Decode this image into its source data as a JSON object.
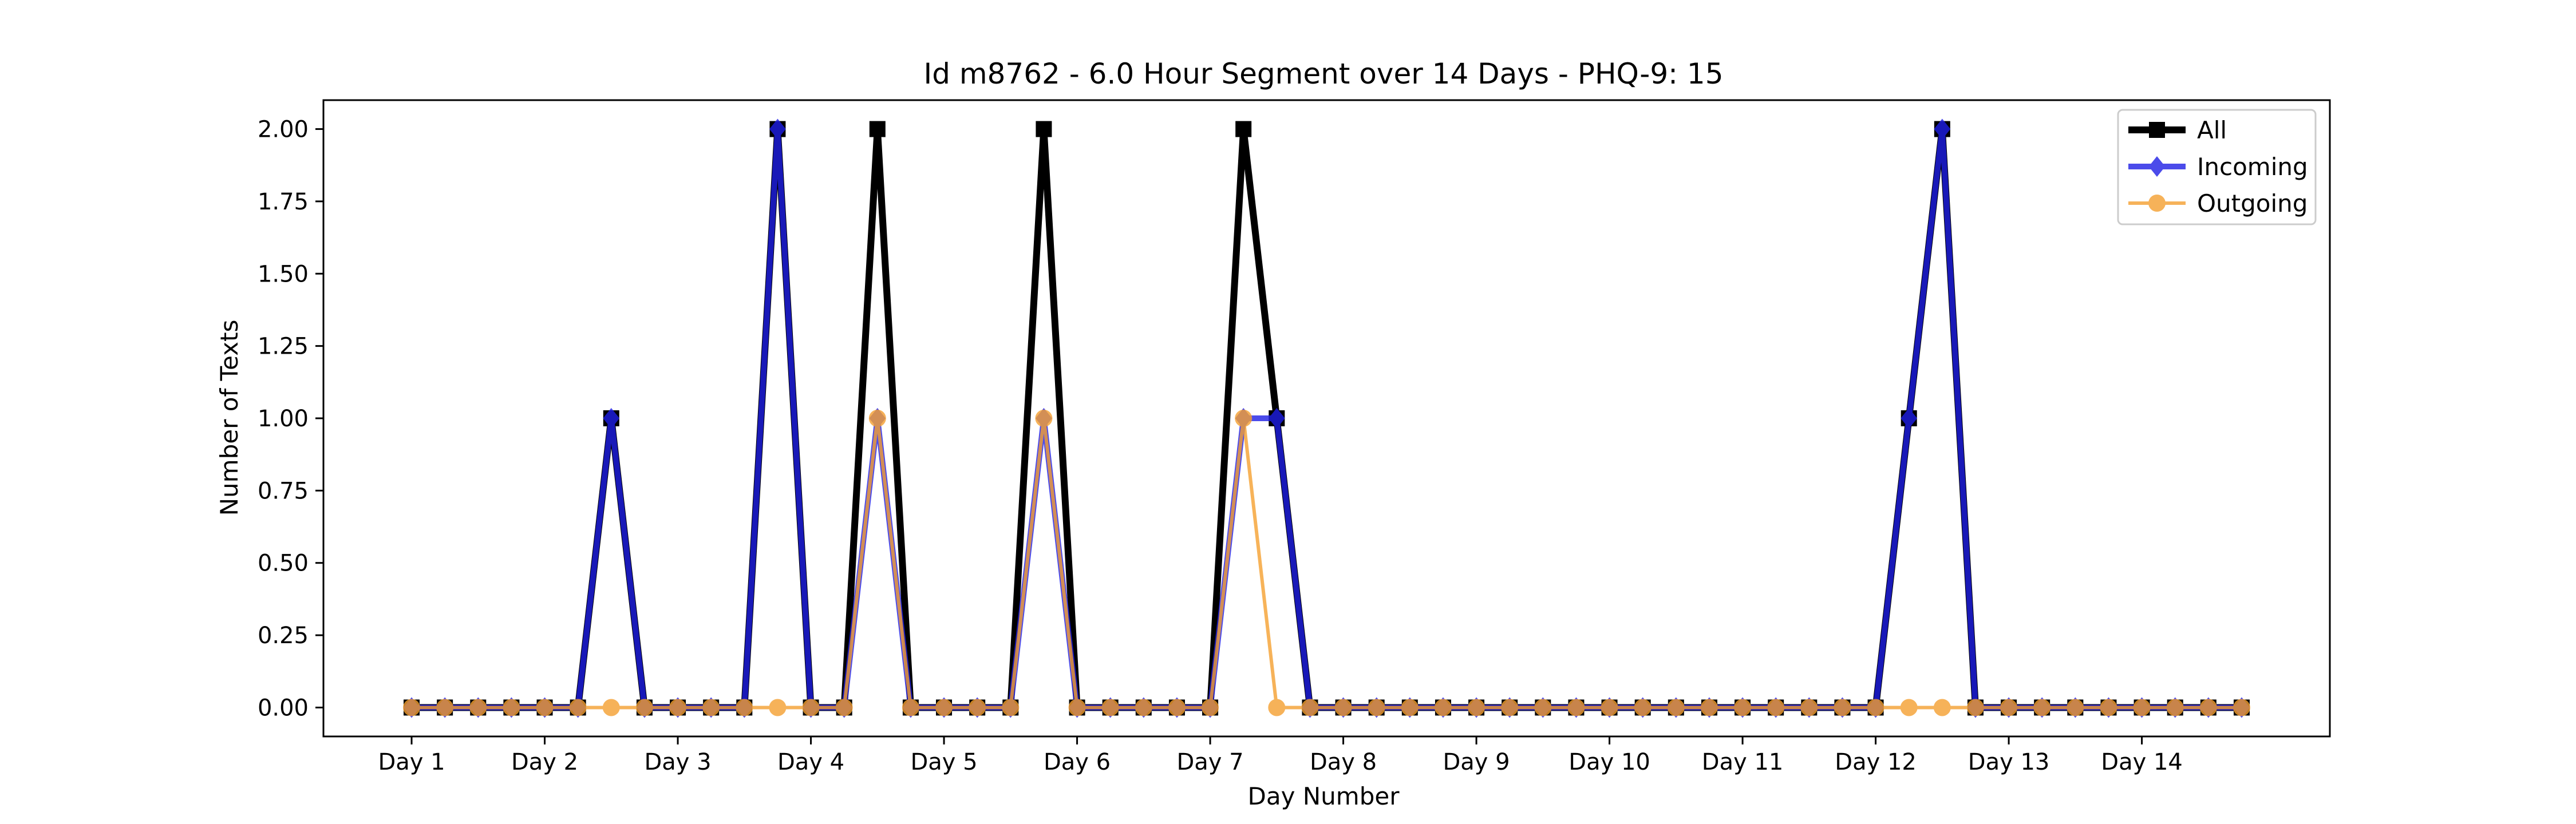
{
  "chart_data": {
    "type": "line",
    "title": "Id m8762 - 6.0 Hour Segment over 14 Days - PHQ-9: 15",
    "xlabel": "Day Number",
    "ylabel": "Number of Texts",
    "x_tick_labels": [
      "Day 1",
      "Day 2",
      "Day 3",
      "Day 4",
      "Day 5",
      "Day 6",
      "Day 7",
      "Day 8",
      "Day 9",
      "Day 10",
      "Day 11",
      "Day 12",
      "Day 13",
      "Day 14"
    ],
    "y_ticks": [
      "0.00",
      "0.25",
      "0.50",
      "0.75",
      "1.00",
      "1.25",
      "1.50",
      "1.75",
      "2.00"
    ],
    "ylim": [
      -0.1,
      2.1
    ],
    "segments_per_day": 4,
    "legend_position": "top-right",
    "grid": false,
    "series": [
      {
        "name": "All",
        "color": "#000000",
        "marker": "square",
        "values": [
          0,
          0,
          0,
          0,
          0,
          0,
          1,
          0,
          0,
          0,
          0,
          2,
          0,
          0,
          2,
          0,
          0,
          0,
          0,
          2,
          0,
          0,
          0,
          0,
          0,
          2,
          1,
          0,
          0,
          0,
          0,
          0,
          0,
          0,
          0,
          0,
          0,
          0,
          0,
          0,
          0,
          0,
          0,
          0,
          0,
          1,
          2,
          0,
          0,
          0,
          0,
          0,
          0,
          0,
          0,
          0
        ]
      },
      {
        "name": "Incoming",
        "color": "#1f1fe6",
        "marker": "diamond",
        "values": [
          0,
          0,
          0,
          0,
          0,
          0,
          1,
          0,
          0,
          0,
          0,
          2,
          0,
          0,
          1,
          0,
          0,
          0,
          0,
          1,
          0,
          0,
          0,
          0,
          0,
          1,
          1,
          0,
          0,
          0,
          0,
          0,
          0,
          0,
          0,
          0,
          0,
          0,
          0,
          0,
          0,
          0,
          0,
          0,
          0,
          1,
          2,
          0,
          0,
          0,
          0,
          0,
          0,
          0,
          0,
          0
        ]
      },
      {
        "name": "Outgoing",
        "color": "#f5a030",
        "marker": "circle",
        "values": [
          0,
          0,
          0,
          0,
          0,
          0,
          0,
          0,
          0,
          0,
          0,
          0,
          0,
          0,
          1,
          0,
          0,
          0,
          0,
          1,
          0,
          0,
          0,
          0,
          0,
          1,
          0,
          0,
          0,
          0,
          0,
          0,
          0,
          0,
          0,
          0,
          0,
          0,
          0,
          0,
          0,
          0,
          0,
          0,
          0,
          0,
          0,
          0,
          0,
          0,
          0,
          0,
          0,
          0,
          0,
          0
        ]
      }
    ]
  }
}
